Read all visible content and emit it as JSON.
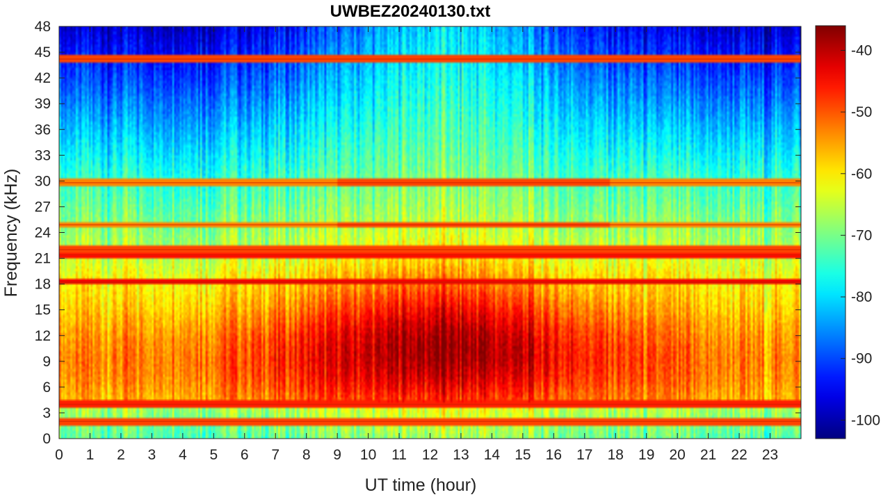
{
  "chart_data": {
    "type": "heatmap",
    "title": "UWBEZ20240130.txt",
    "xlabel": "UT time (hour)",
    "ylabel": "Frequency (kHz)",
    "xlim": [
      0,
      24
    ],
    "ylim": [
      0,
      48
    ],
    "x_ticks": [
      "0",
      "1",
      "2",
      "3",
      "4",
      "5",
      "6",
      "7",
      "8",
      "9",
      "10",
      "11",
      "12",
      "13",
      "14",
      "15",
      "16",
      "17",
      "18",
      "19",
      "20",
      "21",
      "22",
      "23"
    ],
    "y_ticks": [
      "0",
      "3",
      "6",
      "9",
      "12",
      "15",
      "18",
      "21",
      "24",
      "27",
      "30",
      "33",
      "36",
      "39",
      "42",
      "45",
      "48"
    ],
    "colorbar": {
      "range": [
        -103,
        -36
      ],
      "ticks": [
        "-100",
        "-90",
        "-80",
        "-70",
        "-60",
        "-50",
        "-40"
      ],
      "colormap": "jet"
    },
    "narrowband_lines_khz": [
      2.0,
      4.0,
      18.2,
      21.4,
      22.0,
      24.9,
      29.8,
      44.2
    ],
    "note_levels": {
      "day_enhancement_hours": [
        9,
        17.5
      ],
      "peak_power_db": -40,
      "background_high_freq_db": -90
    }
  }
}
